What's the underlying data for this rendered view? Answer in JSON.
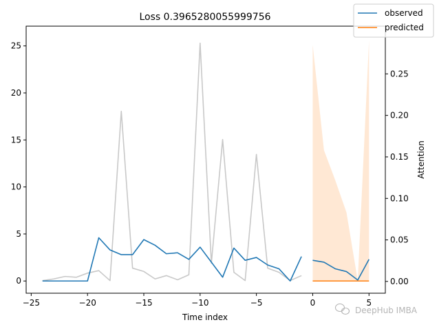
{
  "chart_data": {
    "type": "line",
    "title": "Loss 0.3965280055999756",
    "xlabel": "Time index",
    "ylabel": "",
    "y2label": "Attention",
    "xlim": [
      -25.45,
      6.45
    ],
    "ylim": [
      -1.3,
      27.1
    ],
    "y2lim": [
      -0.0142,
      0.3075
    ],
    "x_ticks": [
      -25,
      -20,
      -15,
      -10,
      -5,
      0,
      5
    ],
    "y_ticks": [
      0,
      5,
      10,
      15,
      20,
      25
    ],
    "y2_ticks": [
      0.0,
      0.05,
      0.1,
      0.15,
      0.2,
      0.25
    ],
    "grid": false,
    "legend": {
      "position": "top-right",
      "entries": [
        {
          "name": "observed",
          "color": "#1f77b4"
        },
        {
          "name": "predicted",
          "color": "#ff7f0e"
        }
      ]
    },
    "series": [
      {
        "name": "observed",
        "axis": "left",
        "color": "#1f77b4",
        "x": [
          -24,
          -23,
          -22,
          -21,
          -20,
          -19,
          -18,
          -17,
          -16,
          -15,
          -14,
          -13,
          -12,
          -11,
          -10,
          -9,
          -8,
          -7,
          -6,
          -5,
          -4,
          -3,
          -2,
          -1
        ],
        "values": [
          0.0,
          0.0,
          0.0,
          0.0,
          0.0,
          4.6,
          3.3,
          2.8,
          2.8,
          4.4,
          3.8,
          2.9,
          3.0,
          2.3,
          3.6,
          2.0,
          0.4,
          3.5,
          2.2,
          2.5,
          1.7,
          1.3,
          0.0,
          2.6
        ]
      },
      {
        "name": "observed-future",
        "axis": "left",
        "color": "#1f77b4",
        "x": [
          0,
          1,
          2,
          3,
          4,
          5
        ],
        "values": [
          2.2,
          2.0,
          1.3,
          1.0,
          0.1,
          2.3
        ]
      },
      {
        "name": "predicted",
        "axis": "left",
        "color": "#ff7f0e",
        "x": [
          0,
          1,
          2,
          3,
          4,
          5
        ],
        "values": [
          0.0,
          0.0,
          0.0,
          0.0,
          0.0,
          0.0
        ]
      },
      {
        "name": "attention",
        "axis": "right",
        "color": "#c8c8c8",
        "x": [
          -24,
          -23,
          -22,
          -21,
          -20,
          -19,
          -18,
          -17,
          -16,
          -15,
          -14,
          -13,
          -12,
          -11,
          -10,
          -9,
          -8,
          -7,
          -6,
          -5,
          -4,
          -3,
          -2,
          -1
        ],
        "values": [
          0.001,
          0.003,
          0.006,
          0.005,
          0.01,
          0.013,
          0.001,
          0.205,
          0.016,
          0.012,
          0.003,
          0.007,
          0.002,
          0.008,
          0.287,
          0.022,
          0.171,
          0.011,
          0.001,
          0.153,
          0.016,
          0.011,
          0.001,
          0.007
        ]
      }
    ],
    "band": {
      "axis": "right",
      "color": "#ff7f0e",
      "opacity": 0.18,
      "x": [
        0,
        1,
        2,
        3,
        4,
        5
      ],
      "low": [
        0,
        0,
        0,
        0,
        0,
        0
      ],
      "high": [
        0.285,
        0.158,
        0.122,
        0.083,
        0.001,
        0.29
      ]
    }
  },
  "watermark": "DeepHub IMBA"
}
